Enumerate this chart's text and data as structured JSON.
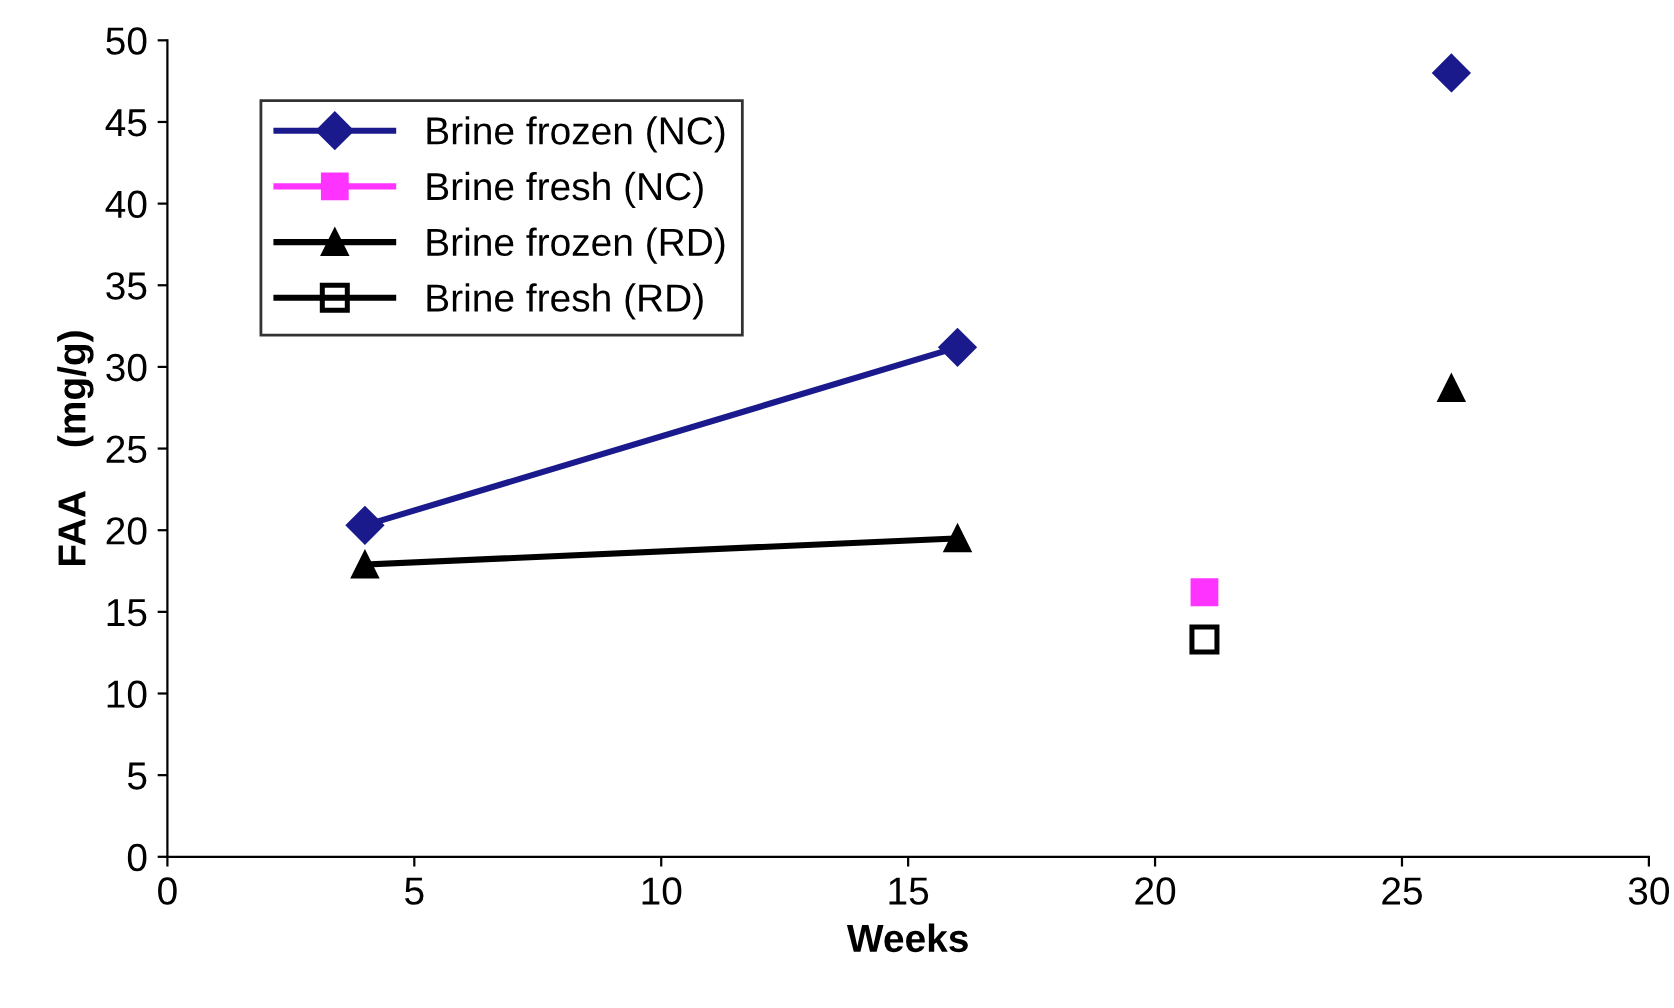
{
  "chart_data": {
    "type": "line",
    "xlabel": "Weeks",
    "ylabel": "FAA    (mg/g)",
    "xlim": [
      0,
      30
    ],
    "xticks": [
      0,
      5,
      10,
      15,
      20,
      25,
      30
    ],
    "ylim": [
      0,
      50
    ],
    "yticks": [
      0,
      5,
      10,
      15,
      20,
      25,
      30,
      35,
      40,
      45,
      50
    ],
    "grid": false,
    "legend": "top left",
    "series": [
      {
        "name": "Brine frozen (NC)",
        "color": "#1a1a8c",
        "marker": "diamond",
        "x": [
          4,
          16,
          21,
          26
        ],
        "values": [
          20.3,
          31.2,
          null,
          48
        ]
      },
      {
        "name": "Brine fresh (NC)",
        "color": "#ff33ff",
        "marker": "square",
        "type": "scatter",
        "x": [
          21
        ],
        "values": [
          16.2
        ]
      },
      {
        "name": "Brine frozen (RD)",
        "color": "#000000",
        "marker": "triangle",
        "x": [
          4,
          16,
          21,
          26
        ],
        "values": [
          17.9,
          19.5,
          null,
          28.7
        ]
      },
      {
        "name": "Brine fresh (RD)",
        "color": "#000000",
        "marker": "square_open",
        "type": "scatter",
        "x": [
          21
        ],
        "values": [
          13.3
        ]
      }
    ]
  }
}
